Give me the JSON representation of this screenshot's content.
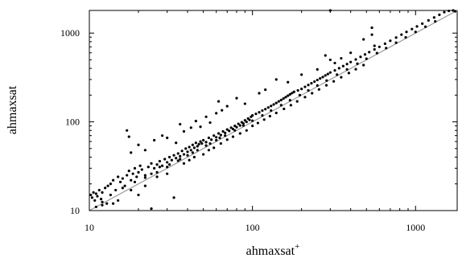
{
  "chart_data": {
    "type": "scatter",
    "title": "",
    "xlabel": "ahmaxsat",
    "xlabel_superscript": "+",
    "ylabel": "ahmaxsat",
    "x_scale": "log",
    "y_scale": "log",
    "xlim": [
      10,
      1800
    ],
    "ylim": [
      10,
      1800
    ],
    "x_ticks": [
      10,
      100,
      1000
    ],
    "y_ticks": [
      10,
      100,
      1000
    ],
    "x_tick_labels": [
      "10",
      "100",
      "1000"
    ],
    "y_tick_labels": [
      "10",
      "100",
      "1000"
    ],
    "grid": false,
    "legend": "none",
    "reference_line": {
      "type": "identity",
      "from": 10,
      "to": 1800
    },
    "colors": {
      "points": "#000000",
      "reference_line": "#9a9a9a",
      "axes": "#000000"
    },
    "points": [
      [
        10.2,
        15
      ],
      [
        10.4,
        14
      ],
      [
        10.6,
        16
      ],
      [
        10.8,
        13
      ],
      [
        11,
        15.5
      ],
      [
        11.2,
        14.5
      ],
      [
        11.5,
        17
      ],
      [
        11.8,
        13.5
      ],
      [
        12,
        16
      ],
      [
        12.5,
        18
      ],
      [
        12.8,
        12
      ],
      [
        13,
        19
      ],
      [
        13.5,
        20
      ],
      [
        14,
        22
      ],
      [
        14.5,
        17
      ],
      [
        15,
        24
      ],
      [
        15.5,
        21
      ],
      [
        16,
        23
      ],
      [
        16.5,
        19
      ],
      [
        17,
        25
      ],
      [
        17.5,
        28
      ],
      [
        18,
        22
      ],
      [
        18.5,
        26
      ],
      [
        19,
        30
      ],
      [
        19.5,
        24
      ],
      [
        20,
        27
      ],
      [
        20.5,
        32
      ],
      [
        21,
        29
      ],
      [
        22,
        25
      ],
      [
        23,
        31
      ],
      [
        24,
        34
      ],
      [
        25,
        30
      ],
      [
        26,
        33
      ],
      [
        27,
        36
      ],
      [
        28,
        32
      ],
      [
        29,
        38
      ],
      [
        30,
        35
      ],
      [
        31,
        40
      ],
      [
        32,
        37
      ],
      [
        33,
        42
      ],
      [
        34,
        39
      ],
      [
        35,
        44
      ],
      [
        36,
        41
      ],
      [
        37,
        47
      ],
      [
        38,
        43
      ],
      [
        39,
        50
      ],
      [
        40,
        46
      ],
      [
        41,
        52
      ],
      [
        42,
        48
      ],
      [
        43,
        55
      ],
      [
        44,
        51
      ],
      [
        45,
        58
      ],
      [
        46,
        53
      ],
      [
        47,
        56
      ],
      [
        48,
        60
      ],
      [
        49,
        57
      ],
      [
        50,
        62
      ],
      [
        52,
        59
      ],
      [
        54,
        66
      ],
      [
        56,
        63
      ],
      [
        58,
        70
      ],
      [
        60,
        67
      ],
      [
        62,
        74
      ],
      [
        64,
        71
      ],
      [
        66,
        78
      ],
      [
        68,
        75
      ],
      [
        70,
        82
      ],
      [
        72,
        79
      ],
      [
        74,
        86
      ],
      [
        76,
        83
      ],
      [
        78,
        90
      ],
      [
        80,
        87
      ],
      [
        82,
        95
      ],
      [
        84,
        91
      ],
      [
        86,
        99
      ],
      [
        88,
        96
      ],
      [
        90,
        104
      ],
      [
        92,
        100
      ],
      [
        94,
        109
      ],
      [
        96,
        105
      ],
      [
        98,
        114
      ],
      [
        100,
        118
      ],
      [
        105,
        123
      ],
      [
        110,
        128
      ],
      [
        115,
        134
      ],
      [
        120,
        139
      ],
      [
        125,
        145
      ],
      [
        130,
        151
      ],
      [
        135,
        157
      ],
      [
        140,
        163
      ],
      [
        145,
        170
      ],
      [
        150,
        176
      ],
      [
        155,
        183
      ],
      [
        160,
        190
      ],
      [
        165,
        197
      ],
      [
        170,
        204
      ],
      [
        175,
        211
      ],
      [
        180,
        218
      ],
      [
        190,
        226
      ],
      [
        200,
        235
      ],
      [
        210,
        248
      ],
      [
        220,
        260
      ],
      [
        230,
        272
      ],
      [
        240,
        284
      ],
      [
        250,
        296
      ],
      [
        260,
        308
      ],
      [
        270,
        320
      ],
      [
        280,
        333
      ],
      [
        290,
        346
      ],
      [
        300,
        360
      ],
      [
        320,
        380
      ],
      [
        340,
        402
      ],
      [
        360,
        425
      ],
      [
        380,
        448
      ],
      [
        400,
        472
      ],
      [
        430,
        505
      ],
      [
        460,
        540
      ],
      [
        490,
        575
      ],
      [
        520,
        610
      ],
      [
        560,
        655
      ],
      [
        600,
        700
      ],
      [
        650,
        760
      ],
      [
        700,
        820
      ],
      [
        760,
        890
      ],
      [
        820,
        960
      ],
      [
        880,
        1030
      ],
      [
        950,
        1110
      ],
      [
        1020,
        1190
      ],
      [
        1100,
        1280
      ],
      [
        1200,
        1390
      ],
      [
        1300,
        1500
      ],
      [
        1400,
        1610
      ],
      [
        1500,
        1720
      ],
      [
        1600,
        1780
      ],
      [
        11,
        11
      ],
      [
        12,
        12.5
      ],
      [
        13.5,
        15
      ],
      [
        16,
        18
      ],
      [
        19,
        21
      ],
      [
        22,
        23.5
      ],
      [
        26,
        27
      ],
      [
        30,
        31
      ],
      [
        35,
        36.5
      ],
      [
        40,
        42
      ],
      [
        46,
        48
      ],
      [
        52,
        54
      ],
      [
        60,
        62
      ],
      [
        68,
        70
      ],
      [
        78,
        80
      ],
      [
        88,
        91
      ],
      [
        100,
        103
      ],
      [
        115,
        118
      ],
      [
        130,
        134
      ],
      [
        150,
        154
      ],
      [
        170,
        175
      ],
      [
        195,
        200
      ],
      [
        220,
        226
      ],
      [
        250,
        257
      ],
      [
        285,
        292
      ],
      [
        330,
        340
      ],
      [
        380,
        390
      ],
      [
        440,
        452
      ],
      [
        500,
        514
      ],
      [
        580,
        595
      ],
      [
        660,
        678
      ],
      [
        760,
        780
      ],
      [
        870,
        895
      ],
      [
        1000,
        1030
      ],
      [
        1150,
        1180
      ],
      [
        1320,
        1355
      ],
      [
        17,
        80
      ],
      [
        17.5,
        68
      ],
      [
        18,
        45
      ],
      [
        20,
        55
      ],
      [
        22,
        48
      ],
      [
        25,
        62
      ],
      [
        28,
        70
      ],
      [
        30,
        66
      ],
      [
        34,
        58
      ],
      [
        36,
        94
      ],
      [
        38,
        78
      ],
      [
        42,
        86
      ],
      [
        45,
        102
      ],
      [
        48,
        88
      ],
      [
        52,
        114
      ],
      [
        55,
        98
      ],
      [
        60,
        125
      ],
      [
        65,
        135
      ],
      [
        70,
        150
      ],
      [
        80,
        185
      ],
      [
        62,
        170
      ],
      [
        90,
        160
      ],
      [
        110,
        210
      ],
      [
        120,
        230
      ],
      [
        140,
        300
      ],
      [
        165,
        280
      ],
      [
        200,
        340
      ],
      [
        250,
        390
      ],
      [
        280,
        560
      ],
      [
        300,
        500
      ],
      [
        320,
        460
      ],
      [
        350,
        520
      ],
      [
        400,
        600
      ],
      [
        540,
        1150
      ],
      [
        480,
        850
      ],
      [
        12,
        11.5
      ],
      [
        14,
        12
      ],
      [
        15,
        13
      ],
      [
        18,
        17
      ],
      [
        20,
        15
      ],
      [
        24,
        10.5
      ],
      [
        22,
        19
      ],
      [
        26,
        24
      ],
      [
        30,
        26
      ],
      [
        33,
        14
      ],
      [
        38,
        34
      ],
      [
        41,
        37
      ],
      [
        44,
        40
      ],
      [
        50,
        43
      ],
      [
        54,
        48
      ],
      [
        58,
        51
      ],
      [
        64,
        57
      ],
      [
        70,
        63
      ],
      [
        76,
        68
      ],
      [
        84,
        74
      ],
      [
        92,
        80
      ],
      [
        100,
        90
      ],
      [
        108,
        97
      ],
      [
        118,
        106
      ],
      [
        128,
        116
      ],
      [
        140,
        126
      ],
      [
        156,
        140
      ],
      [
        172,
        154
      ],
      [
        188,
        170
      ],
      [
        210,
        190
      ],
      [
        232,
        210
      ],
      [
        256,
        232
      ],
      [
        284,
        258
      ],
      [
        315,
        286
      ],
      [
        350,
        318
      ],
      [
        390,
        355
      ],
      [
        430,
        392
      ],
      [
        480,
        436
      ],
      [
        560,
        720
      ],
      [
        540,
        960
      ],
      [
        300,
        1800
      ],
      [
        1700,
        1800
      ],
      [
        1750,
        1760
      ],
      [
        27,
        31
      ],
      [
        24,
        26
      ],
      [
        31,
        33
      ],
      [
        36,
        38
      ],
      [
        43,
        45
      ],
      [
        55,
        57
      ],
      [
        63,
        66
      ]
    ]
  }
}
